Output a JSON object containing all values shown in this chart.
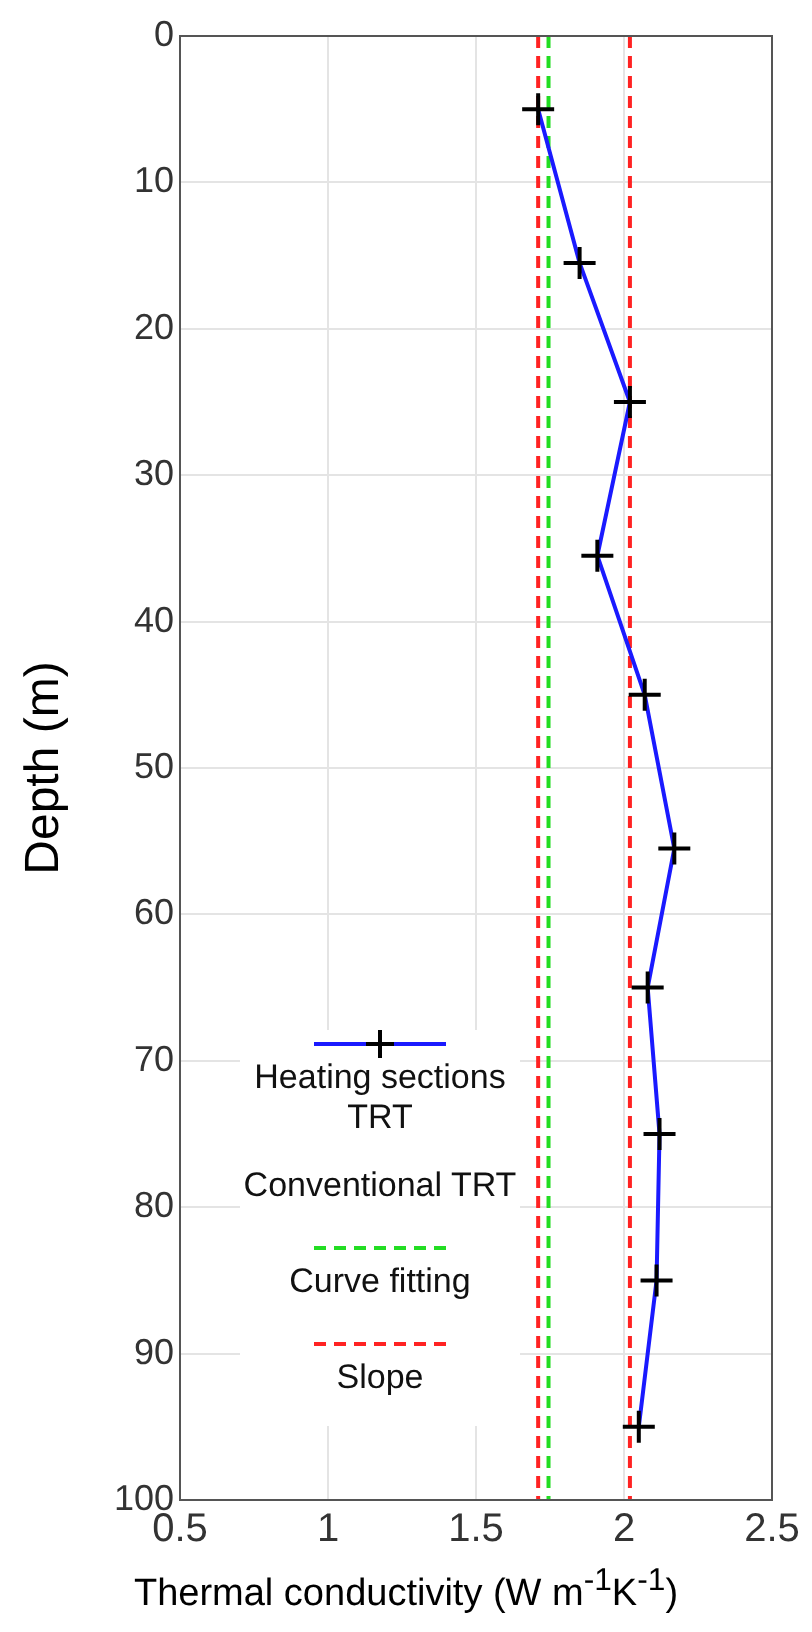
{
  "chart_data": {
    "type": "line",
    "xlabel": "Thermal conductivity (W m$^{-1}$K$^{-1}$)",
    "ylabel": "Depth (m)",
    "xlim": [
      0.5,
      2.5
    ],
    "xticks": [
      0.5,
      1,
      1.5,
      2,
      2.5
    ],
    "ylim": [
      100,
      0
    ],
    "yticks": [
      0,
      10,
      20,
      30,
      40,
      50,
      60,
      70,
      80,
      90,
      100
    ],
    "grid": true,
    "legend": "bottom left",
    "annotations": [
      "Conventional TRT"
    ],
    "series": [
      {
        "name": "Heating sections TRT",
        "color": "#1a1aff",
        "marker": "cross",
        "line_style": "solid",
        "x": [
          1.71,
          1.85,
          2.02,
          1.91,
          2.07,
          2.17,
          2.08,
          2.12,
          2.11,
          2.05
        ],
        "values": [
          5,
          15.5,
          25,
          35.5,
          45,
          55.5,
          65,
          75,
          85,
          95
        ]
      },
      {
        "name": "Curve fitting",
        "color": "#22dd22",
        "marker": "none",
        "line_style": "dashed",
        "x": [
          1.745,
          1.745
        ],
        "values": [
          0,
          100
        ]
      },
      {
        "name": "Slope",
        "color": "#ff2222",
        "marker": "none",
        "line_style": "dashed",
        "x": [
          1.71,
          1.71,
          null,
          2.02,
          2.02
        ],
        "values": [
          0,
          100,
          null,
          0,
          100
        ]
      }
    ]
  }
}
